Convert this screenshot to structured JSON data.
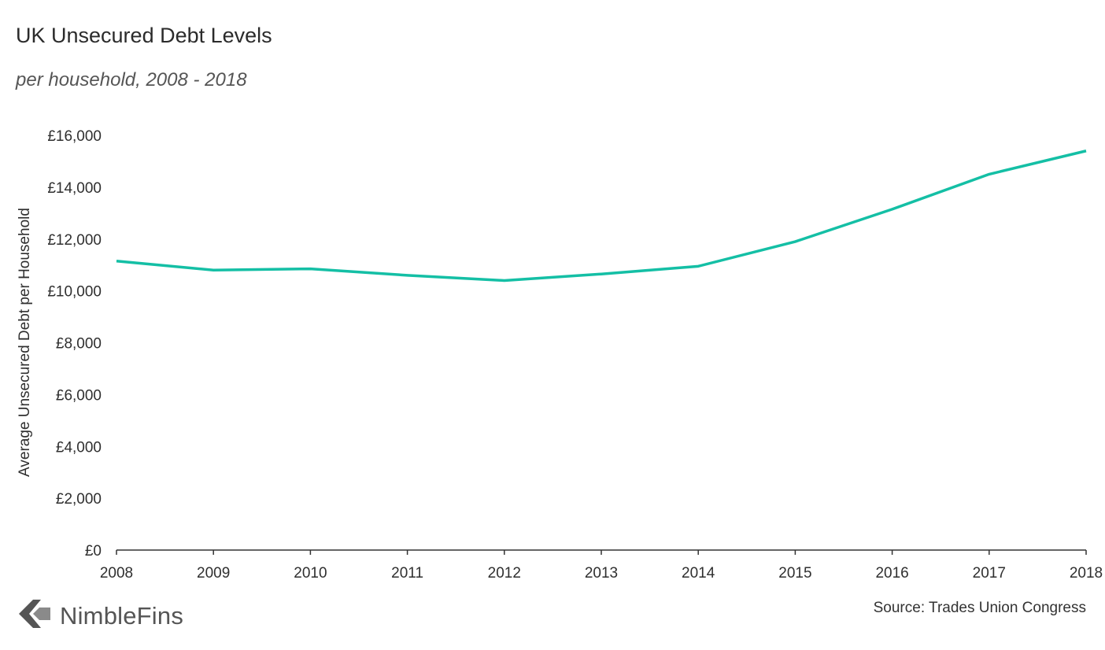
{
  "chart_data": {
    "type": "line",
    "title": "UK Unsecured Debt Levels",
    "subtitle": "per household, 2008 - 2018",
    "xlabel": "",
    "ylabel": "Average Unsecured Debt per Household",
    "x": [
      2008,
      2009,
      2010,
      2011,
      2012,
      2013,
      2014,
      2015,
      2016,
      2017,
      2018
    ],
    "y_ticks": [
      0,
      2000,
      4000,
      6000,
      8000,
      10000,
      12000,
      14000,
      16000
    ],
    "y_tick_labels": [
      "£0",
      "£2,000",
      "£4,000",
      "£6,000",
      "£8,000",
      "£10,000",
      "£12,000",
      "£14,000",
      "£16,000"
    ],
    "ylim": [
      0,
      16000
    ],
    "grid": false,
    "series": [
      {
        "values": [
          11150,
          10800,
          10850,
          10600,
          10400,
          10650,
          10950,
          11900,
          13150,
          14500,
          15400
        ],
        "color": "#14bfa5"
      }
    ]
  },
  "branding": {
    "logo_text": "NimbleFins",
    "logo_icon": "chevron-left-icon"
  },
  "source": "Source: Trades Union Congress"
}
